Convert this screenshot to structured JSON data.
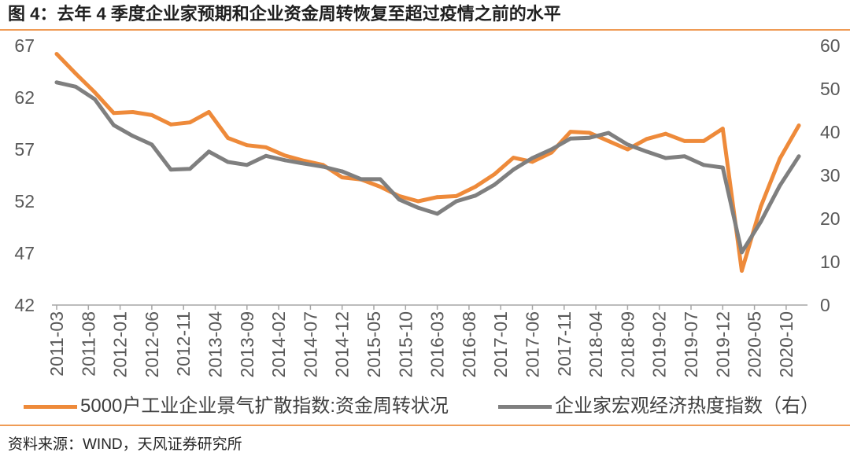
{
  "colors": {
    "accent": "#EF9B55",
    "axis": "#A6A6A6",
    "tick_text": "#595959"
  },
  "footer": {
    "source": "资料来源：WIND，天风证券研究所"
  },
  "chart_data": {
    "type": "line",
    "title": "图 4：去年 4 季度企业家预期和企业资金周转恢复至超过疫情之前的水平",
    "x": [
      "2011-03",
      "2011-06",
      "2011-09",
      "2011-12",
      "2012-03",
      "2012-06",
      "2012-09",
      "2012-12",
      "2013-03",
      "2013-06",
      "2013-09",
      "2013-12",
      "2014-03",
      "2014-06",
      "2014-09",
      "2014-12",
      "2015-03",
      "2015-06",
      "2015-09",
      "2015-12",
      "2016-03",
      "2016-06",
      "2016-09",
      "2016-12",
      "2017-03",
      "2017-06",
      "2017-09",
      "2017-12",
      "2018-03",
      "2018-06",
      "2018-09",
      "2018-12",
      "2019-03",
      "2019-06",
      "2019-09",
      "2019-12",
      "2020-03",
      "2020-06",
      "2020-09",
      "2020-12"
    ],
    "x_ticks": [
      "2011-03",
      "2011-08",
      "2012-01",
      "2012-06",
      "2012-11",
      "2013-04",
      "2013-09",
      "2014-02",
      "2014-07",
      "2014-12",
      "2015-05",
      "2015-10",
      "2016-03",
      "2016-08",
      "2017-01",
      "2017-06",
      "2017-11",
      "2018-04",
      "2018-09",
      "2019-02",
      "2019-07",
      "2019-12",
      "2020-05",
      "2020-10"
    ],
    "y_left": {
      "lim": [
        42,
        67
      ],
      "ticks": [
        42,
        47,
        52,
        57,
        62,
        67
      ]
    },
    "y_right": {
      "lim": [
        0,
        60
      ],
      "ticks": [
        0,
        10,
        20,
        30,
        40,
        50,
        60
      ]
    },
    "grid": false,
    "legend": "bottom",
    "series": [
      {
        "name": "5000户工业企业景气扩散指数:资金周转状况",
        "axis": "left",
        "color": "#EE8A3A",
        "values": [
          66.2,
          64.3,
          62.5,
          60.5,
          60.6,
          60.3,
          59.4,
          59.6,
          60.6,
          58.1,
          57.4,
          57.2,
          56.4,
          55.9,
          55.5,
          54.3,
          54.1,
          53.4,
          52.5,
          52.0,
          52.4,
          52.5,
          53.4,
          54.6,
          56.2,
          55.8,
          56.7,
          58.7,
          58.6,
          57.8,
          57.0,
          58.0,
          58.5,
          57.8,
          57.8,
          59.0,
          45.3,
          51.5,
          56.1,
          59.3
        ]
      },
      {
        "name": "企业家宏观经济热度指数（右）",
        "axis": "right",
        "color": "#7F7F7F",
        "values": [
          51.5,
          50.5,
          47.6,
          41.6,
          39.1,
          37.1,
          31.3,
          31.5,
          35.5,
          33.1,
          32.4,
          34.5,
          33.5,
          32.7,
          32.0,
          30.9,
          29.1,
          29.1,
          24.4,
          22.5,
          21.1,
          24.0,
          25.3,
          27.8,
          31.3,
          34.0,
          36.0,
          38.5,
          38.7,
          39.8,
          37.1,
          35.5,
          34.0,
          34.4,
          32.4,
          31.8,
          12.2,
          19.3,
          27.6,
          34.4
        ]
      }
    ]
  }
}
